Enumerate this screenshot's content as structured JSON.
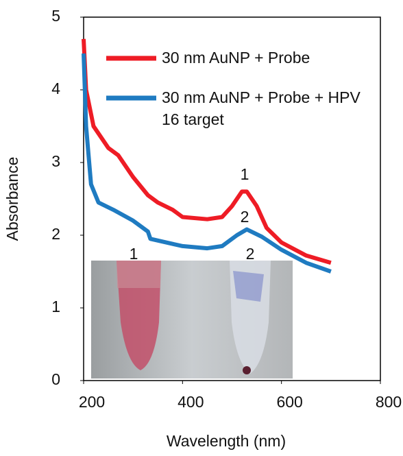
{
  "chart_data": {
    "type": "line",
    "x_label": "Wavelength (nm)",
    "y_label": "Absorbance",
    "xlim": [
      200,
      800
    ],
    "xticks": [
      200,
      400,
      600,
      800
    ],
    "ylim": [
      0,
      5
    ],
    "yticks": [
      0,
      1,
      2,
      3,
      4,
      5
    ],
    "grid": false,
    "legend": "upper right",
    "annotations": [
      "1",
      "2",
      "1",
      "2"
    ],
    "series": [
      {
        "name": "30 nm AuNP + Probe",
        "color": "#ee1c25",
        "x": [
          200,
          205,
          220,
          250,
          270,
          300,
          330,
          350,
          380,
          400,
          450,
          480,
          500,
          520,
          530,
          550,
          570,
          600,
          650,
          700
        ],
        "values": [
          4.7,
          4.0,
          3.5,
          3.2,
          3.1,
          2.8,
          2.55,
          2.45,
          2.35,
          2.25,
          2.22,
          2.25,
          2.4,
          2.6,
          2.6,
          2.4,
          2.1,
          1.9,
          1.72,
          1.62
        ]
      },
      {
        "name": "30 nm AuNP + Probe + HPV 16 target",
        "color": "#1f7bc1",
        "x": [
          200,
          205,
          215,
          230,
          260,
          300,
          330,
          335,
          380,
          400,
          450,
          480,
          510,
          530,
          560,
          600,
          650,
          700
        ],
        "values": [
          4.5,
          3.5,
          2.7,
          2.45,
          2.35,
          2.2,
          2.05,
          1.95,
          1.88,
          1.85,
          1.82,
          1.85,
          2.0,
          2.08,
          1.98,
          1.8,
          1.62,
          1.5
        ]
      }
    ]
  }
}
